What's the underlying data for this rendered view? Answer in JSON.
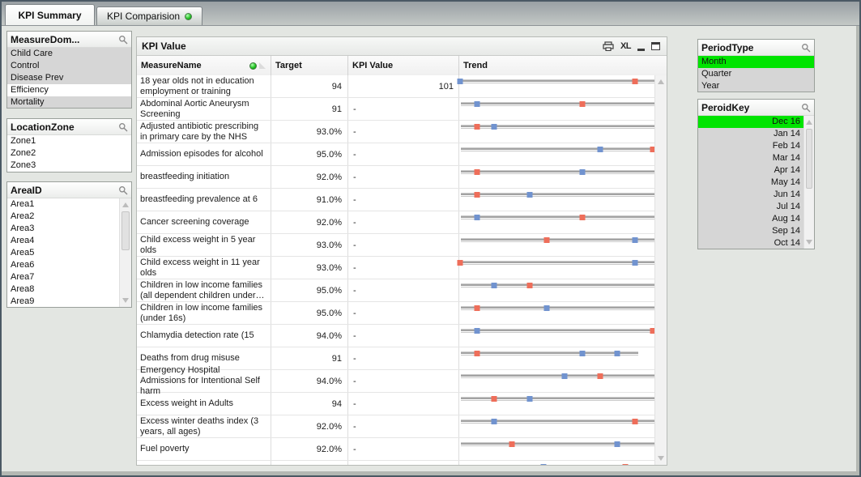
{
  "tabs": [
    {
      "label": "KPI Summary",
      "active": true
    },
    {
      "label": "KPI Comparision",
      "active": false,
      "status_dot": "green"
    }
  ],
  "left_panel": {
    "measure_domain": {
      "title": "MeasureDom...",
      "items": [
        {
          "label": "Child Care",
          "state": "excluded"
        },
        {
          "label": "Control",
          "state": "excluded"
        },
        {
          "label": "Disease Prev",
          "state": "excluded"
        },
        {
          "label": "Efficiency",
          "state": "optional"
        },
        {
          "label": "Mortality",
          "state": "excluded"
        }
      ]
    },
    "location_zone": {
      "title": "LocationZone",
      "items": [
        {
          "label": "Zone1",
          "state": "optional"
        },
        {
          "label": "Zone2",
          "state": "optional"
        },
        {
          "label": "Zone3",
          "state": "optional"
        }
      ]
    },
    "area_id": {
      "title": "AreaID",
      "items": [
        {
          "label": "Area1",
          "state": "optional"
        },
        {
          "label": "Area2",
          "state": "optional"
        },
        {
          "label": "Area3",
          "state": "optional"
        },
        {
          "label": "Area4",
          "state": "optional"
        },
        {
          "label": "Area5",
          "state": "optional"
        },
        {
          "label": "Area6",
          "state": "optional"
        },
        {
          "label": "Area7",
          "state": "optional"
        },
        {
          "label": "Area8",
          "state": "optional"
        },
        {
          "label": "Area9",
          "state": "optional"
        }
      ]
    }
  },
  "kpi_table": {
    "title": "KPI Value",
    "toolbar": {
      "excel_label": "XL"
    },
    "columns": [
      "MeasureName",
      "Target",
      "KPI Value",
      "Trend"
    ],
    "rows": [
      {
        "name": "18 year olds not in education employment or training",
        "target": "94",
        "kpi": "101",
        "kpi_align": "right",
        "line_end": 1,
        "markers": [
          [
            "blue",
            0.005
          ],
          [
            "red",
            0.9
          ]
        ]
      },
      {
        "name": "Abdominal Aortic Aneurysm Screening",
        "target": "91",
        "kpi": "-",
        "kpi_align": "left",
        "line_end": 1,
        "markers": [
          [
            "blue",
            0.09
          ],
          [
            "red",
            0.63
          ]
        ]
      },
      {
        "name": "Adjusted antibiotic prescribing in primary care by the NHS",
        "target": "93.0%",
        "kpi": "-",
        "kpi_align": "left",
        "line_end": 1,
        "markers": [
          [
            "red",
            0.09
          ],
          [
            "blue",
            0.18
          ]
        ]
      },
      {
        "name": "Admission episodes for alcohol",
        "target": "95.0%",
        "kpi": "-",
        "kpi_align": "left",
        "line_end": 1,
        "markers": [
          [
            "blue",
            0.72
          ],
          [
            "red",
            0.99
          ]
        ]
      },
      {
        "name": "breastfeeding initiation",
        "target": "92.0%",
        "kpi": "-",
        "kpi_align": "left",
        "line_end": 1,
        "markers": [
          [
            "red",
            0.09
          ],
          [
            "blue",
            0.63
          ]
        ]
      },
      {
        "name": "breastfeeding prevalence at 6",
        "target": "91.0%",
        "kpi": "-",
        "kpi_align": "left",
        "line_end": 1,
        "markers": [
          [
            "red",
            0.09
          ],
          [
            "blue",
            0.36
          ]
        ]
      },
      {
        "name": "Cancer screening coverage",
        "target": "92.0%",
        "kpi": "-",
        "kpi_align": "left",
        "line_end": 1,
        "markers": [
          [
            "blue",
            0.09
          ],
          [
            "red",
            0.63
          ]
        ]
      },
      {
        "name": "Child excess weight in 5 year olds",
        "target": "93.0%",
        "kpi": "-",
        "kpi_align": "left",
        "line_end": 1,
        "markers": [
          [
            "red",
            0.45
          ],
          [
            "blue",
            0.9
          ]
        ]
      },
      {
        "name": "Child excess weight in 11 year olds",
        "target": "93.0%",
        "kpi": "-",
        "kpi_align": "left",
        "line_end": 1,
        "markers": [
          [
            "red",
            0.005
          ],
          [
            "blue",
            0.9
          ]
        ]
      },
      {
        "name": "Children in low income families (all dependent children under…",
        "target": "95.0%",
        "kpi": "-",
        "kpi_align": "left",
        "line_end": 1,
        "markers": [
          [
            "blue",
            0.18
          ],
          [
            "red",
            0.36
          ]
        ]
      },
      {
        "name": "Children in low income families (under 16s)",
        "target": "95.0%",
        "kpi": "-",
        "kpi_align": "left",
        "line_end": 1,
        "markers": [
          [
            "red",
            0.09
          ],
          [
            "blue",
            0.45
          ]
        ]
      },
      {
        "name": "Chlamydia detection rate (15",
        "target": "94.0%",
        "kpi": "-",
        "kpi_align": "left",
        "line_end": 1,
        "markers": [
          [
            "blue",
            0.09
          ],
          [
            "red",
            0.99
          ]
        ]
      },
      {
        "name": "Deaths from drug misuse",
        "target": "91",
        "kpi": "-",
        "kpi_align": "left",
        "line_end": 0.91,
        "markers": [
          [
            "red",
            0.09
          ],
          [
            "blue",
            0.63
          ],
          [
            "blue",
            0.81
          ]
        ]
      },
      {
        "name": "Emergency Hospital Admissions for Intentional Self harm",
        "target": "94.0%",
        "kpi": "-",
        "kpi_align": "left",
        "line_end": 1,
        "markers": [
          [
            "blue",
            0.54
          ],
          [
            "red",
            0.72
          ]
        ]
      },
      {
        "name": "Excess weight in Adults",
        "target": "94",
        "kpi": "-",
        "kpi_align": "left",
        "line_end": 1,
        "markers": [
          [
            "red",
            0.18
          ],
          [
            "blue",
            0.36
          ]
        ]
      },
      {
        "name": "Excess winter deaths index (3 years, all ages)",
        "target": "92.0%",
        "kpi": "-",
        "kpi_align": "left",
        "line_end": 1,
        "markers": [
          [
            "blue",
            0.18
          ],
          [
            "red",
            0.9
          ]
        ]
      },
      {
        "name": "Fuel poverty",
        "target": "92.0%",
        "kpi": "-",
        "kpi_align": "left",
        "line_end": 1,
        "markers": [
          [
            "red",
            0.27
          ],
          [
            "blue",
            0.81
          ]
        ]
      },
      {
        "name": "",
        "target": "",
        "kpi": "",
        "kpi_align": "left",
        "line_end": 0.88,
        "markers": [
          [
            "blue",
            0.43
          ],
          [
            "red",
            0.85
          ]
        ],
        "partial": true
      }
    ]
  },
  "right_panel": {
    "period_type": {
      "title": "PeriodType",
      "items": [
        {
          "label": "Month",
          "state": "selected"
        },
        {
          "label": "Quarter",
          "state": "excluded"
        },
        {
          "label": "Year",
          "state": "excluded"
        }
      ]
    },
    "period_key": {
      "title": "PeroidKey",
      "align": "right",
      "items": [
        {
          "label": "Dec 16",
          "state": "selected"
        },
        {
          "label": "Jan 14",
          "state": "excluded"
        },
        {
          "label": "Feb 14",
          "state": "excluded"
        },
        {
          "label": "Mar 14",
          "state": "excluded"
        },
        {
          "label": "Apr 14",
          "state": "excluded"
        },
        {
          "label": "May 14",
          "state": "excluded"
        },
        {
          "label": "Jun 14",
          "state": "excluded"
        },
        {
          "label": "Jul 14",
          "state": "excluded"
        },
        {
          "label": "Aug 14",
          "state": "excluded"
        },
        {
          "label": "Sep 14",
          "state": "excluded"
        },
        {
          "label": "Oct 14",
          "state": "excluded"
        }
      ]
    }
  },
  "colors": {
    "selection_green": "#00e400",
    "excluded_gray": "#d6d6d6",
    "trend_blue": "#7193cf",
    "trend_red": "#ee6e5a",
    "tab_dot_green": "#27c427"
  }
}
